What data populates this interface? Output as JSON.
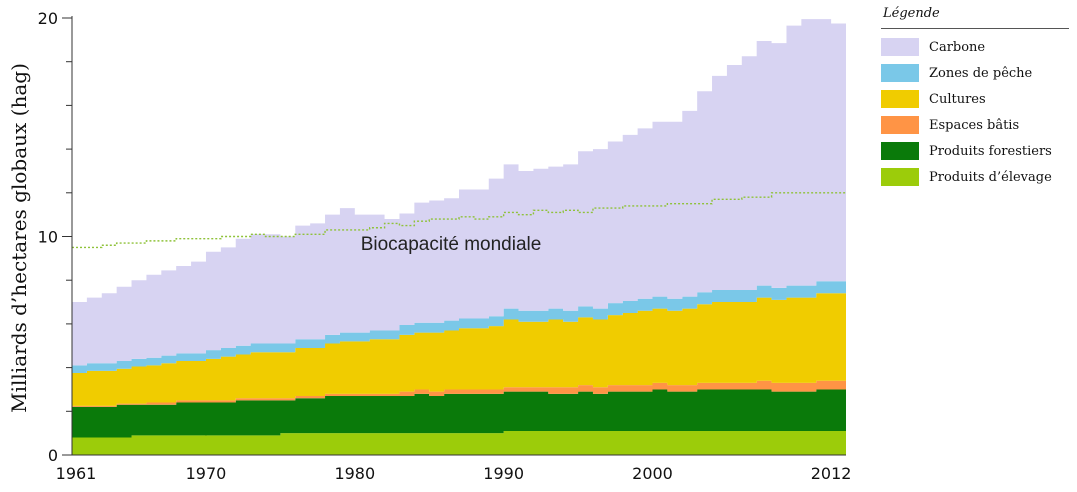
{
  "chart_data": {
    "type": "area",
    "stacked": true,
    "ylabel": "Milliards d’hectares globaux (hag)",
    "xlabel": "",
    "ylim": [
      0,
      20
    ],
    "xlim": [
      1961,
      2013
    ],
    "y_ticks": [
      0,
      10,
      20
    ],
    "x_ticks": [
      1961,
      1970,
      1980,
      1990,
      2000,
      2012
    ],
    "legend": {
      "title": "Légende",
      "placement": "right"
    },
    "years": [
      1961,
      1962,
      1963,
      1964,
      1965,
      1966,
      1967,
      1968,
      1969,
      1970,
      1971,
      1972,
      1973,
      1974,
      1975,
      1976,
      1977,
      1978,
      1979,
      1980,
      1981,
      1982,
      1983,
      1984,
      1985,
      1986,
      1987,
      1988,
      1989,
      1990,
      1991,
      1992,
      1993,
      1994,
      1995,
      1996,
      1997,
      1998,
      1999,
      2000,
      2001,
      2002,
      2003,
      2004,
      2005,
      2006,
      2007,
      2008,
      2009,
      2010,
      2011,
      2012
    ],
    "series": [
      {
        "name": "Produits d’élevage",
        "color": "#9ccc0a",
        "values": [
          0.8,
          0.8,
          0.8,
          0.8,
          0.9,
          0.9,
          0.9,
          0.9,
          0.9,
          0.9,
          0.9,
          0.9,
          0.9,
          0.9,
          1.0,
          1.0,
          1.0,
          1.0,
          1.0,
          1.0,
          1.0,
          1.0,
          1.0,
          1.0,
          1.0,
          1.0,
          1.0,
          1.0,
          1.0,
          1.1,
          1.1,
          1.1,
          1.1,
          1.1,
          1.1,
          1.1,
          1.1,
          1.1,
          1.1,
          1.1,
          1.1,
          1.1,
          1.1,
          1.1,
          1.1,
          1.1,
          1.1,
          1.1,
          1.1,
          1.1,
          1.1,
          1.1
        ]
      },
      {
        "name": "Produits forestiers",
        "color": "#0a7a0a",
        "values": [
          1.4,
          1.4,
          1.4,
          1.5,
          1.4,
          1.4,
          1.4,
          1.5,
          1.5,
          1.5,
          1.5,
          1.6,
          1.6,
          1.6,
          1.5,
          1.6,
          1.6,
          1.7,
          1.7,
          1.7,
          1.7,
          1.7,
          1.7,
          1.8,
          1.7,
          1.8,
          1.8,
          1.8,
          1.8,
          1.8,
          1.8,
          1.8,
          1.7,
          1.7,
          1.8,
          1.7,
          1.8,
          1.8,
          1.8,
          1.9,
          1.8,
          1.8,
          1.9,
          1.9,
          1.9,
          1.9,
          1.9,
          1.8,
          1.8,
          1.8,
          1.9,
          1.9
        ]
      },
      {
        "name": "Espaces bâtis",
        "color": "#ff9445",
        "values": [
          0.05,
          0.05,
          0.05,
          0.05,
          0.05,
          0.1,
          0.1,
          0.1,
          0.1,
          0.1,
          0.1,
          0.1,
          0.1,
          0.1,
          0.1,
          0.1,
          0.1,
          0.1,
          0.1,
          0.1,
          0.1,
          0.1,
          0.2,
          0.2,
          0.2,
          0.2,
          0.2,
          0.2,
          0.2,
          0.2,
          0.2,
          0.2,
          0.3,
          0.3,
          0.3,
          0.3,
          0.3,
          0.3,
          0.3,
          0.3,
          0.3,
          0.3,
          0.3,
          0.3,
          0.3,
          0.3,
          0.4,
          0.4,
          0.4,
          0.4,
          0.4,
          0.4
        ]
      },
      {
        "name": "Cultures",
        "color": "#f0cc00",
        "values": [
          1.5,
          1.6,
          1.6,
          1.6,
          1.7,
          1.7,
          1.8,
          1.8,
          1.8,
          1.9,
          2.0,
          2.0,
          2.1,
          2.1,
          2.1,
          2.2,
          2.2,
          2.3,
          2.4,
          2.4,
          2.5,
          2.5,
          2.6,
          2.6,
          2.7,
          2.7,
          2.8,
          2.8,
          2.9,
          3.1,
          3.0,
          3.0,
          3.1,
          3.0,
          3.1,
          3.1,
          3.2,
          3.3,
          3.4,
          3.4,
          3.4,
          3.5,
          3.6,
          3.7,
          3.7,
          3.7,
          3.8,
          3.8,
          3.9,
          3.9,
          4.0,
          4.0
        ]
      },
      {
        "name": "Zones de pêche",
        "color": "#7ac8e8",
        "values": [
          0.35,
          0.35,
          0.35,
          0.35,
          0.35,
          0.35,
          0.35,
          0.35,
          0.35,
          0.4,
          0.4,
          0.4,
          0.4,
          0.4,
          0.4,
          0.4,
          0.4,
          0.4,
          0.4,
          0.4,
          0.4,
          0.4,
          0.45,
          0.45,
          0.45,
          0.45,
          0.45,
          0.45,
          0.45,
          0.5,
          0.5,
          0.5,
          0.5,
          0.5,
          0.5,
          0.5,
          0.55,
          0.55,
          0.55,
          0.55,
          0.55,
          0.55,
          0.55,
          0.55,
          0.55,
          0.55,
          0.55,
          0.55,
          0.55,
          0.55,
          0.55,
          0.55
        ]
      },
      {
        "name": "Carbone",
        "color": "#d7d3f2",
        "values": [
          2.9,
          3.0,
          3.2,
          3.4,
          3.6,
          3.8,
          3.9,
          4.0,
          4.2,
          4.5,
          4.6,
          4.9,
          5.0,
          5.0,
          4.9,
          5.2,
          5.3,
          5.5,
          5.7,
          5.4,
          5.3,
          5.1,
          5.1,
          5.5,
          5.6,
          5.6,
          5.9,
          5.9,
          6.3,
          6.6,
          6.4,
          6.5,
          6.5,
          6.7,
          7.1,
          7.3,
          7.4,
          7.6,
          7.8,
          8.0,
          8.1,
          8.5,
          9.2,
          9.8,
          10.3,
          10.7,
          11.2,
          11.2,
          11.9,
          12.2,
          12.0,
          11.8
        ]
      }
    ],
    "reference_line": {
      "name": "Biocapacité mondiale",
      "color": "#8fc23a",
      "style": "dotted",
      "values": [
        9.5,
        9.5,
        9.6,
        9.7,
        9.7,
        9.8,
        9.8,
        9.9,
        9.9,
        9.9,
        10.0,
        10.0,
        10.1,
        10.0,
        10.0,
        10.1,
        10.1,
        10.3,
        10.3,
        10.3,
        10.4,
        10.6,
        10.5,
        10.7,
        10.8,
        10.8,
        10.9,
        10.8,
        10.9,
        11.1,
        11.0,
        11.2,
        11.1,
        11.2,
        11.1,
        11.3,
        11.3,
        11.4,
        11.4,
        11.4,
        11.5,
        11.5,
        11.5,
        11.7,
        11.7,
        11.8,
        11.8,
        12.0,
        12.0,
        12.0,
        12.0,
        12.0
      ]
    }
  }
}
